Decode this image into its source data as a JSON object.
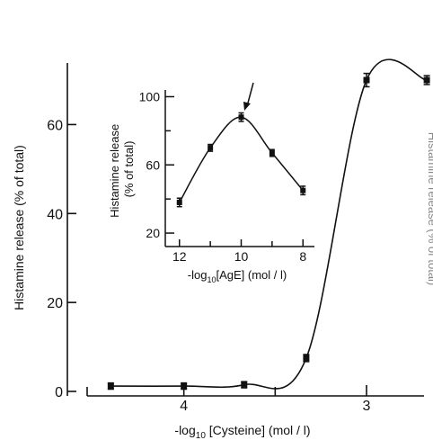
{
  "chart_data": [
    {
      "type": "line",
      "panel": "main",
      "ylabel": "Histamine release (% of total)",
      "xlabel_prefix": "-log",
      "xlabel_sub": "10",
      "xlabel_suffix": " [Cysteine] (mol / l)",
      "x_direction": "decreasing",
      "xlim": [
        4.5,
        2.7
      ],
      "ylim": [
        0,
        70
      ],
      "x_ticks": [
        4,
        3
      ],
      "x_minor_ticks": [
        3.5
      ],
      "y_ticks": [
        0,
        20,
        40,
        60
      ],
      "grid": false,
      "legend": "none",
      "series": [
        {
          "x": [
            4.4,
            4.0,
            3.67,
            3.33,
            3.0,
            2.67
          ],
          "y": [
            1.2,
            1.2,
            1.5,
            7.5,
            70,
            70
          ],
          "error": [
            0.7,
            0.7,
            0.7,
            0.8,
            1.5,
            1.0
          ]
        }
      ],
      "clipped_text": "Histamine release (% of total)"
    },
    {
      "type": "line",
      "panel": "inset",
      "ylabel_line1": "Histamine release",
      "ylabel_line2": "(% of total)",
      "xlabel_prefix": "-log",
      "xlabel_sub": "10",
      "xlabel_suffix": "[AgE] (mol / l)",
      "x_direction": "decreasing",
      "xlim": [
        12.4,
        7.6
      ],
      "ylim": [
        10,
        105
      ],
      "x_ticks": [
        12,
        10,
        8
      ],
      "x_minor_ticks": [
        11,
        9
      ],
      "y_ticks": [
        20,
        60,
        100
      ],
      "y_minor_ticks": [
        40,
        80
      ],
      "grid": false,
      "annotation": "arrow pointing at the optimal AgE concentration",
      "series": [
        {
          "x": [
            12,
            11,
            10,
            9,
            8
          ],
          "y": [
            38,
            70,
            88,
            67,
            45
          ],
          "error": [
            2.5,
            2,
            2.5,
            2,
            2.5
          ]
        }
      ]
    }
  ]
}
